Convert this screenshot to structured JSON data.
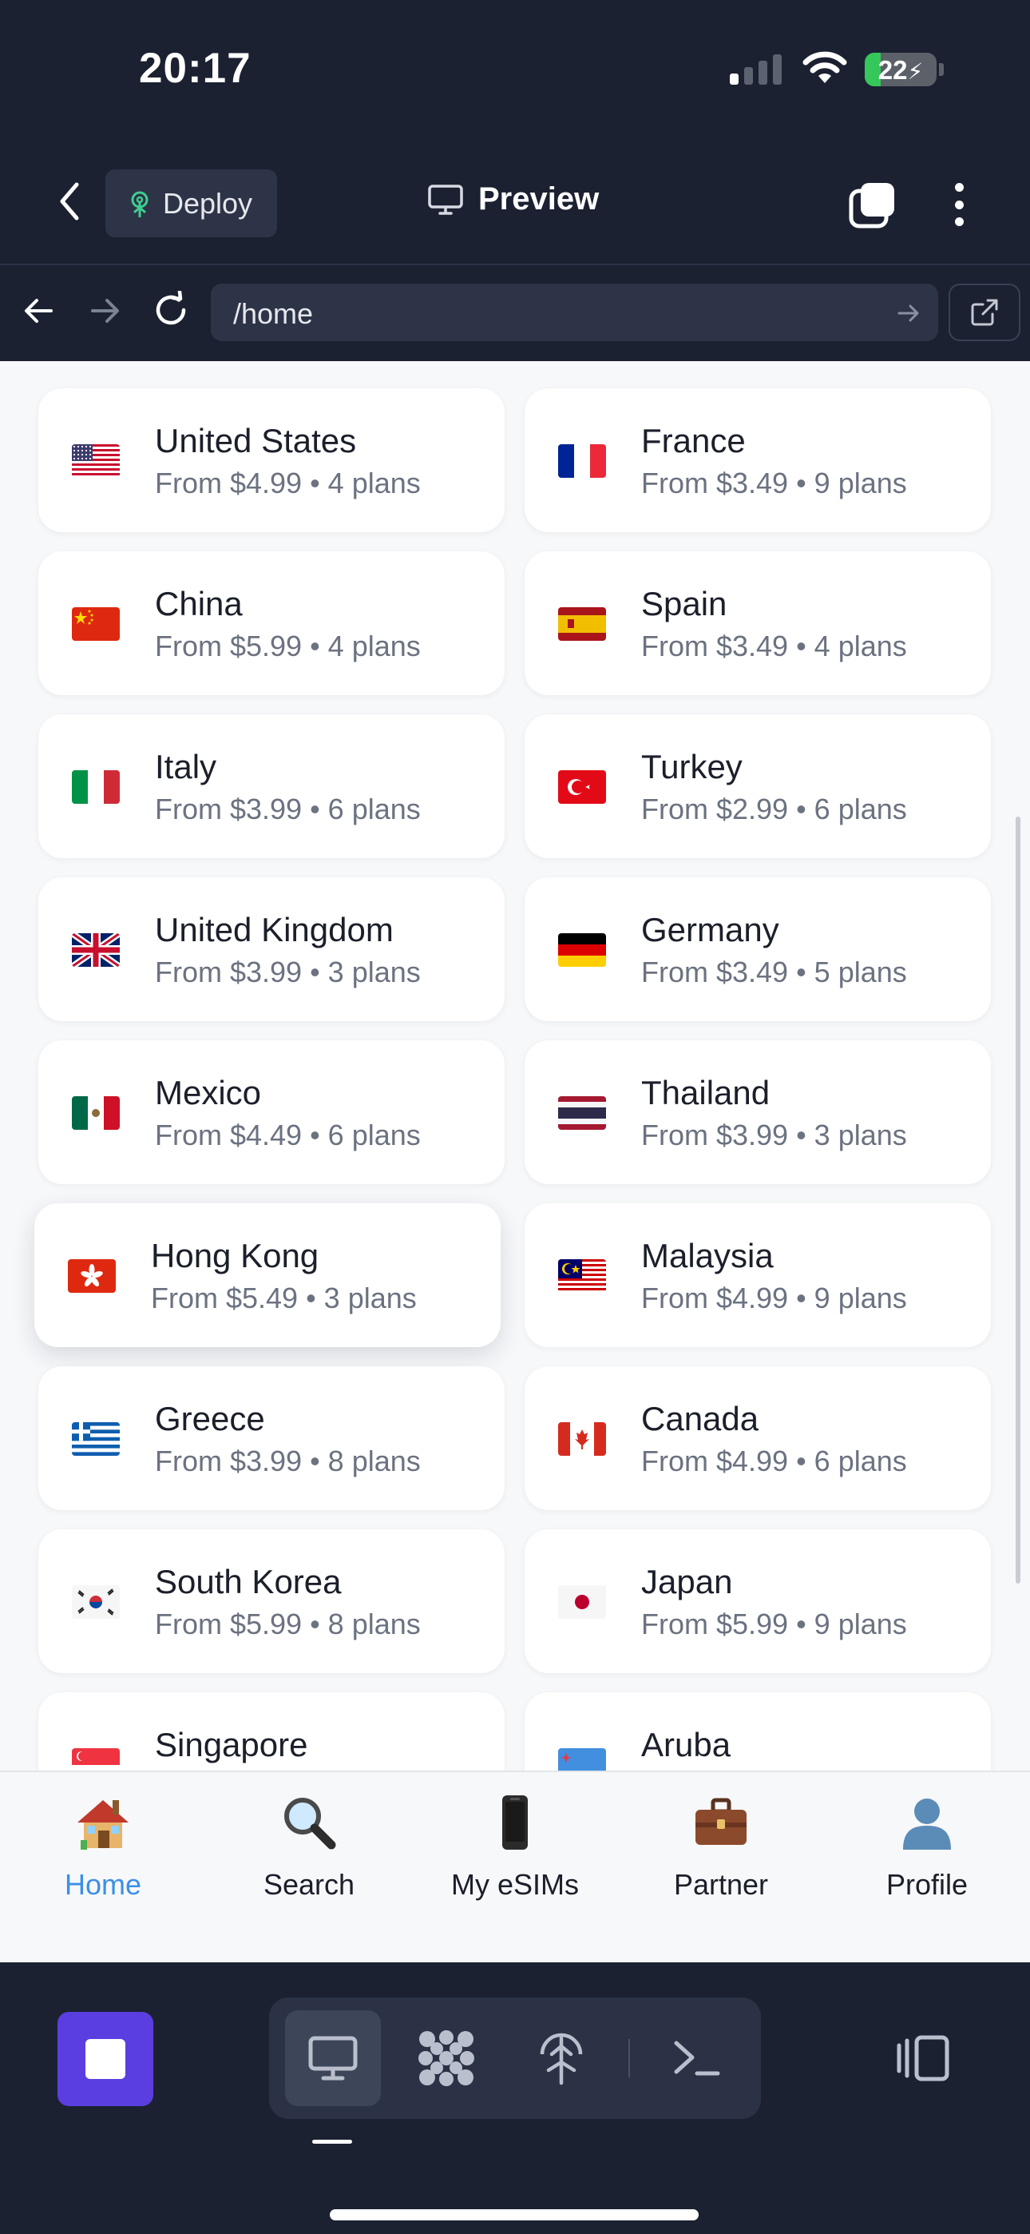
{
  "status": {
    "time": "20:17",
    "battery": "22",
    "battery_level": 0.22
  },
  "header": {
    "deploy_label": "Deploy",
    "preview_label": "Preview"
  },
  "browser": {
    "url": "/home"
  },
  "destinations": [
    {
      "name": "United States",
      "subtitle": "From $4.99 • 4 plans",
      "flag": "us"
    },
    {
      "name": "France",
      "subtitle": "From $3.49 • 9 plans",
      "flag": "fr"
    },
    {
      "name": "China",
      "subtitle": "From $5.99 • 4 plans",
      "flag": "cn"
    },
    {
      "name": "Spain",
      "subtitle": "From $3.49 • 4 plans",
      "flag": "es"
    },
    {
      "name": "Italy",
      "subtitle": "From $3.99 • 6 plans",
      "flag": "it"
    },
    {
      "name": "Turkey",
      "subtitle": "From $2.99 • 6 plans",
      "flag": "tr"
    },
    {
      "name": "United Kingdom",
      "subtitle": "From $3.99 • 3 plans",
      "flag": "gb"
    },
    {
      "name": "Germany",
      "subtitle": "From $3.49 • 5 plans",
      "flag": "de"
    },
    {
      "name": "Mexico",
      "subtitle": "From $4.49 • 6 plans",
      "flag": "mx"
    },
    {
      "name": "Thailand",
      "subtitle": "From $3.99 • 3 plans",
      "flag": "th"
    },
    {
      "name": "Hong Kong",
      "subtitle": "From $5.49 • 3 plans",
      "flag": "hk"
    },
    {
      "name": "Malaysia",
      "subtitle": "From $4.99 • 9 plans",
      "flag": "my"
    },
    {
      "name": "Greece",
      "subtitle": "From $3.99 • 8 plans",
      "flag": "gr"
    },
    {
      "name": "Canada",
      "subtitle": "From $4.99 • 6 plans",
      "flag": "ca"
    },
    {
      "name": "South Korea",
      "subtitle": "From $5.99 • 8 plans",
      "flag": "kr"
    },
    {
      "name": "Japan",
      "subtitle": "From $5.99 • 9 plans",
      "flag": "jp"
    },
    {
      "name": "Singapore",
      "subtitle": "",
      "flag": "sg"
    },
    {
      "name": "Aruba",
      "subtitle": "",
      "flag": "aw"
    }
  ],
  "bottom_nav": [
    {
      "label": "Home",
      "icon": "house-emoji",
      "active": true
    },
    {
      "label": "Search",
      "icon": "magnifier-emoji"
    },
    {
      "label": "My eSIMs",
      "icon": "phone-emoji"
    },
    {
      "label": "Partner",
      "icon": "briefcase-emoji"
    },
    {
      "label": "Profile",
      "icon": "person-emoji"
    }
  ],
  "colors": {
    "accent": "#3b8fe6",
    "stop_button": "#5b3ee0",
    "dark_bg": "#1b2131"
  }
}
